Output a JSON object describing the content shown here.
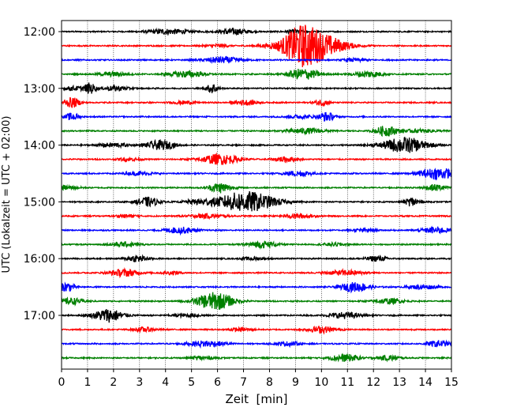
{
  "chart_data": {
    "type": "line",
    "title": "",
    "xlabel": "Zeit  [min]",
    "ylabel": "UTC (Lokalzeit = UTC + 02:00)",
    "xlim": [
      0,
      15
    ],
    "x_ticks": [
      "0",
      "1",
      "2",
      "3",
      "4",
      "5",
      "6",
      "7",
      "8",
      "9",
      "10",
      "11",
      "12",
      "13",
      "14",
      "15"
    ],
    "y_tick_labels": [
      "12:00",
      "13:00",
      "14:00",
      "15:00",
      "16:00",
      "17:00"
    ],
    "grid": "vertical dotted lines at each minute",
    "row_interval_min": 15,
    "trace_colors": [
      "#000000",
      "#ff0000",
      "#0000ff",
      "#008000"
    ],
    "series": [
      {
        "start": "12:00",
        "bursts": [
          [
            4.1,
            0.55,
            0.5
          ],
          [
            6.6,
            0.4,
            0.6
          ],
          [
            9.0,
            0.3,
            0.3
          ]
        ]
      },
      {
        "start": "12:15",
        "bursts": [
          [
            9.6,
            0.8,
            3.0
          ],
          [
            9.2,
            0.4,
            1.5
          ],
          [
            6.0,
            0.3,
            0.3
          ]
        ]
      },
      {
        "start": "12:30",
        "bursts": [
          [
            6.2,
            0.5,
            0.6
          ],
          [
            11.3,
            0.3,
            0.3
          ]
        ]
      },
      {
        "start": "12:45",
        "bursts": [
          [
            4.8,
            0.5,
            0.6
          ],
          [
            9.3,
            0.4,
            1.1
          ],
          [
            11.8,
            0.4,
            0.6
          ],
          [
            2.0,
            0.4,
            0.4
          ]
        ]
      },
      {
        "start": "13:00",
        "bursts": [
          [
            1.1,
            0.15,
            1.0
          ],
          [
            5.8,
            0.15,
            1.0
          ],
          [
            2.1,
            0.3,
            0.5
          ],
          [
            0.5,
            0.3,
            0.4
          ]
        ]
      },
      {
        "start": "13:15",
        "bursts": [
          [
            0.4,
            0.2,
            1.0
          ],
          [
            7.1,
            0.3,
            0.5
          ],
          [
            10.0,
            0.2,
            0.6
          ],
          [
            4.7,
            0.3,
            0.3
          ]
        ]
      },
      {
        "start": "13:30",
        "bursts": [
          [
            0.4,
            0.2,
            0.7
          ],
          [
            10.2,
            0.2,
            0.9
          ],
          [
            9.2,
            0.4,
            0.3
          ]
        ]
      },
      {
        "start": "13:45",
        "bursts": [
          [
            12.5,
            0.3,
            1.0
          ],
          [
            9.4,
            0.5,
            0.5
          ],
          [
            13.8,
            0.5,
            0.3
          ]
        ]
      },
      {
        "start": "14:00",
        "bursts": [
          [
            13.2,
            0.6,
            1.5
          ],
          [
            3.8,
            0.4,
            0.9
          ],
          [
            2.0,
            0.4,
            0.4
          ]
        ]
      },
      {
        "start": "14:15",
        "bursts": [
          [
            6.1,
            0.5,
            1.0
          ],
          [
            8.6,
            0.3,
            0.5
          ],
          [
            2.6,
            0.3,
            0.3
          ]
        ]
      },
      {
        "start": "14:30",
        "bursts": [
          [
            14.5,
            0.5,
            1.1
          ],
          [
            9.1,
            0.4,
            0.5
          ],
          [
            3.0,
            0.4,
            0.3
          ]
        ]
      },
      {
        "start": "14:45",
        "bursts": [
          [
            6.1,
            0.3,
            1.0
          ],
          [
            14.4,
            0.3,
            0.6
          ],
          [
            0.2,
            0.3,
            0.4
          ]
        ]
      },
      {
        "start": "15:00",
        "bursts": [
          [
            7.1,
            0.8,
            2.0
          ],
          [
            3.3,
            0.3,
            0.9
          ],
          [
            13.5,
            0.2,
            0.9
          ],
          [
            5.3,
            0.4,
            0.4
          ]
        ]
      },
      {
        "start": "15:15",
        "bursts": [
          [
            5.6,
            0.5,
            0.4
          ],
          [
            9.1,
            0.4,
            0.4
          ],
          [
            2.5,
            0.3,
            0.3
          ]
        ]
      },
      {
        "start": "15:30",
        "bursts": [
          [
            4.6,
            0.4,
            0.6
          ],
          [
            14.4,
            0.4,
            0.6
          ],
          [
            11.6,
            0.3,
            0.3
          ]
        ]
      },
      {
        "start": "15:45",
        "bursts": [
          [
            7.7,
            0.4,
            0.6
          ],
          [
            2.4,
            0.4,
            0.4
          ],
          [
            10.5,
            0.3,
            0.3
          ]
        ]
      },
      {
        "start": "16:00",
        "bursts": [
          [
            2.9,
            0.3,
            0.6
          ],
          [
            12.1,
            0.3,
            0.5
          ],
          [
            7.4,
            0.3,
            0.3
          ]
        ]
      },
      {
        "start": "16:15",
        "bursts": [
          [
            2.4,
            0.4,
            0.7
          ],
          [
            10.9,
            0.5,
            0.5
          ],
          [
            4.2,
            0.3,
            0.3
          ]
        ]
      },
      {
        "start": "16:30",
        "bursts": [
          [
            11.3,
            0.4,
            0.9
          ],
          [
            0.2,
            0.2,
            0.9
          ],
          [
            13.9,
            0.4,
            0.4
          ]
        ]
      },
      {
        "start": "16:45",
        "bursts": [
          [
            5.9,
            0.5,
            1.7
          ],
          [
            0.4,
            0.3,
            0.6
          ],
          [
            12.6,
            0.4,
            0.5
          ]
        ]
      },
      {
        "start": "17:00",
        "bursts": [
          [
            1.8,
            0.4,
            1.3
          ],
          [
            10.9,
            0.4,
            0.6
          ],
          [
            4.8,
            0.4,
            0.3
          ]
        ]
      },
      {
        "start": "17:15",
        "bursts": [
          [
            10.0,
            0.4,
            0.6
          ],
          [
            3.2,
            0.3,
            0.4
          ],
          [
            6.9,
            0.3,
            0.3
          ]
        ]
      },
      {
        "start": "17:30",
        "bursts": [
          [
            5.6,
            0.5,
            0.6
          ],
          [
            14.5,
            0.3,
            0.6
          ],
          [
            8.7,
            0.3,
            0.4
          ]
        ]
      },
      {
        "start": "17:45",
        "bursts": [
          [
            10.9,
            0.4,
            0.7
          ],
          [
            12.6,
            0.3,
            0.5
          ],
          [
            5.4,
            0.3,
            0.4
          ]
        ]
      }
    ]
  }
}
